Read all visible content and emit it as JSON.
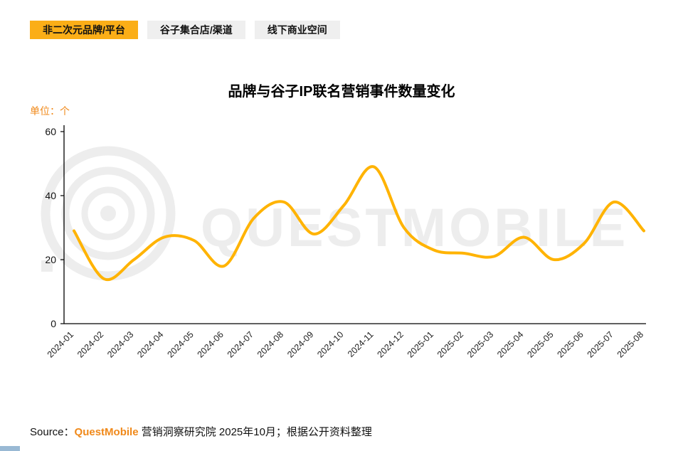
{
  "tabs": [
    {
      "label": "非二次元品牌/平台",
      "active": true
    },
    {
      "label": "谷子集合店/渠道",
      "active": false
    },
    {
      "label": "线下商业空间",
      "active": false
    }
  ],
  "chart_data": {
    "type": "line",
    "title": "品牌与谷子IP联名营销事件数量变化",
    "ylabel": "单位：个",
    "xlabel": "",
    "categories": [
      "2024-01",
      "2024-02",
      "2024-03",
      "2024-04",
      "2024-05",
      "2024-06",
      "2024-07",
      "2024-08",
      "2024-09",
      "2024-10",
      "2024-11",
      "2024-12",
      "2025-01",
      "2025-02",
      "2025-03",
      "2025-04",
      "2025-05",
      "2025-06",
      "2025-07",
      "2025-08"
    ],
    "values": [
      29,
      14,
      20,
      27,
      26,
      18,
      33,
      38,
      28,
      37,
      49,
      30,
      23,
      22,
      21,
      27,
      20,
      25,
      38,
      29
    ],
    "ylim": [
      0,
      60
    ],
    "yticks": [
      0,
      20,
      40,
      60
    ],
    "grid": false,
    "legend_position": "none",
    "line_color": "#FFB300"
  },
  "watermark": {
    "text": "QUESTMOBILE",
    "color": "#EDEDED"
  },
  "source": {
    "prefix": "Source：",
    "brand": "QuestMobile",
    "suffix": " 营销洞察研究院 2025年10月；根据公开资料整理"
  },
  "colors": {
    "accent": "#FBAE17",
    "brand_orange": "#F0891A",
    "line": "#FFB300",
    "watermark": "#EDEDED"
  }
}
